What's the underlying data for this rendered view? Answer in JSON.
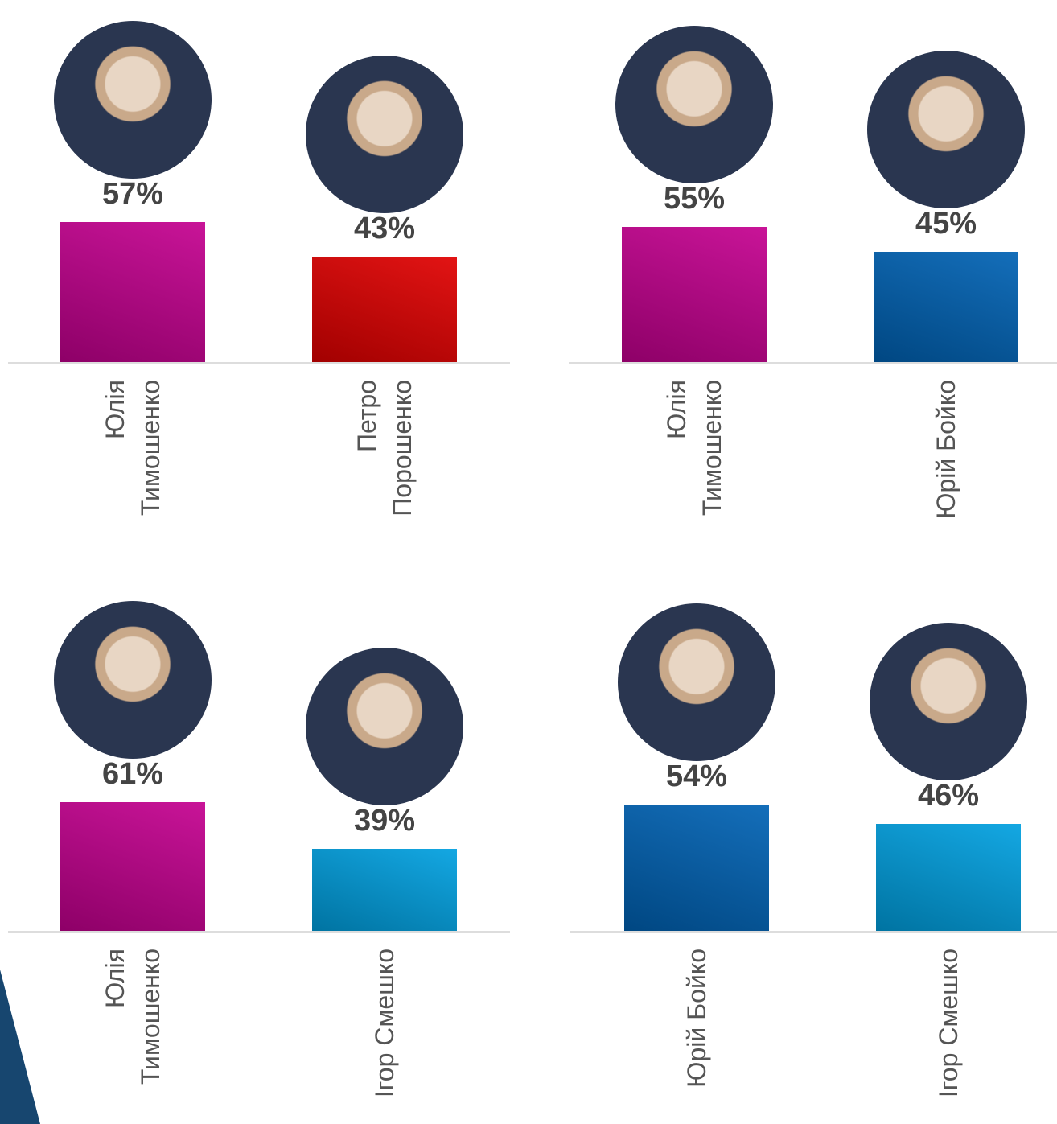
{
  "chart_data": [
    {
      "type": "bar",
      "categories": [
        "Юлія Тимошенко",
        "Петро Порошенко"
      ],
      "values": [
        57,
        43
      ],
      "value_labels": [
        "57%",
        "43%"
      ],
      "colors": [
        "#c4008f",
        "#e00000"
      ]
    },
    {
      "type": "bar",
      "categories": [
        "Юлія Тимошенко",
        "Юрій Бойко"
      ],
      "values": [
        55,
        45
      ],
      "value_labels": [
        "55%",
        "45%"
      ],
      "colors": [
        "#c4008f",
        "#0062b4"
      ]
    },
    {
      "type": "bar",
      "categories": [
        "Юлія Тимошенко",
        "Ігор Смешко"
      ],
      "values": [
        61,
        39
      ],
      "value_labels": [
        "61%",
        "39%"
      ],
      "colors": [
        "#c4008f",
        "#00a0e0"
      ]
    },
    {
      "type": "bar",
      "categories": [
        "Юрій Бойко",
        "Ігор Смешко"
      ],
      "values": [
        54,
        46
      ],
      "value_labels": [
        "54%",
        "46%"
      ],
      "colors": [
        "#0062b4",
        "#00a0e0"
      ]
    }
  ]
}
